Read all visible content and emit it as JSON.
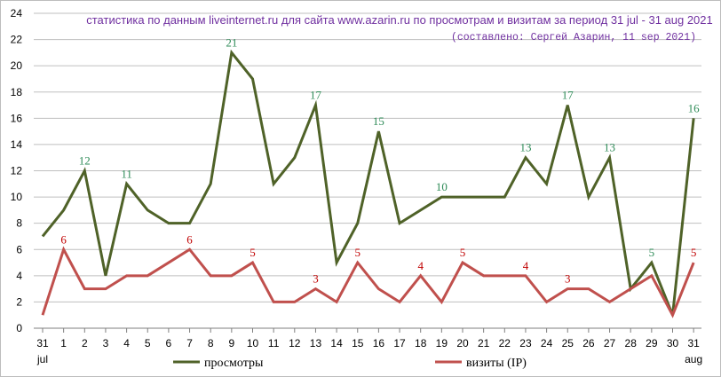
{
  "chart_data": {
    "type": "line",
    "title": "статистика по данным liveinternet.ru для сайта www.azarin.ru по просмотрам и визитам за период 31 jul - 31 aug 2021",
    "subtitle": "(составлено: Сергей Азарин, 11 sep 2021)",
    "categories": [
      "31",
      "1",
      "2",
      "3",
      "4",
      "5",
      "6",
      "7",
      "8",
      "9",
      "10",
      "11",
      "12",
      "13",
      "14",
      "15",
      "16",
      "17",
      "18",
      "19",
      "20",
      "21",
      "22",
      "23",
      "24",
      "25",
      "26",
      "27",
      "28",
      "29",
      "30",
      "31"
    ],
    "month_labels": [
      {
        "index": 0,
        "text": "jul"
      },
      {
        "index": 31,
        "text": "aug"
      }
    ],
    "ylim": [
      0,
      24
    ],
    "yticks": [
      0,
      2,
      4,
      6,
      8,
      10,
      12,
      14,
      16,
      18,
      20,
      22,
      24
    ],
    "grid": true,
    "legend_position": "bottom",
    "series": [
      {
        "name": "просмотры",
        "color": "#4f6228",
        "label_color": "#2e8b57",
        "values": [
          7,
          9,
          12,
          4,
          11,
          9,
          8,
          8,
          11,
          21,
          19,
          11,
          13,
          17,
          5,
          8,
          15,
          8,
          9,
          10,
          10,
          10,
          10,
          13,
          11,
          17,
          10,
          13,
          3,
          5,
          1,
          16
        ],
        "data_labels": [
          {
            "index": 2,
            "text": "12"
          },
          {
            "index": 4,
            "text": "11"
          },
          {
            "index": 9,
            "text": "21"
          },
          {
            "index": 13,
            "text": "17"
          },
          {
            "index": 16,
            "text": "15"
          },
          {
            "index": 19,
            "text": "10"
          },
          {
            "index": 23,
            "text": "13"
          },
          {
            "index": 25,
            "text": "17"
          },
          {
            "index": 27,
            "text": "13"
          },
          {
            "index": 29,
            "text": "5"
          },
          {
            "index": 31,
            "text": "16"
          }
        ]
      },
      {
        "name": "визиты (IP)",
        "color": "#c0504d",
        "label_color": "#c00000",
        "values": [
          1,
          6,
          3,
          3,
          4,
          4,
          5,
          6,
          4,
          4,
          5,
          2,
          2,
          3,
          2,
          5,
          3,
          2,
          4,
          2,
          5,
          4,
          4,
          4,
          2,
          3,
          3,
          2,
          3,
          4,
          1,
          5
        ],
        "data_labels": [
          {
            "index": 1,
            "text": "6"
          },
          {
            "index": 7,
            "text": "6"
          },
          {
            "index": 10,
            "text": "5"
          },
          {
            "index": 13,
            "text": "3"
          },
          {
            "index": 15,
            "text": "5"
          },
          {
            "index": 18,
            "text": "4"
          },
          {
            "index": 20,
            "text": "5"
          },
          {
            "index": 23,
            "text": "4"
          },
          {
            "index": 25,
            "text": "3"
          },
          {
            "index": 31,
            "text": "5"
          }
        ]
      }
    ]
  }
}
